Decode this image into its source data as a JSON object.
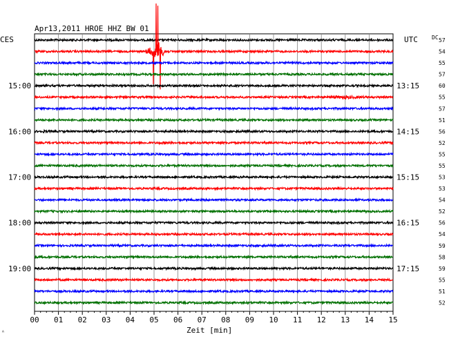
{
  "chart_data": {
    "type": "line",
    "title": "Apr13,2011   HROE HHZ BW 01",
    "left_corner_label": "CES",
    "right_corner_label": "UTC",
    "dc_label": "DC",
    "xlabel": "Zeit [min]",
    "xlim": [
      0,
      15
    ],
    "x_ticks": [
      "00",
      "01",
      "02",
      "03",
      "04",
      "05",
      "06",
      "07",
      "08",
      "09",
      "10",
      "11",
      "12",
      "13",
      "14",
      "15"
    ],
    "left_time_labels": [
      {
        "row": 4,
        "text": "15:00"
      },
      {
        "row": 8,
        "text": "16:00"
      },
      {
        "row": 12,
        "text": "17:00"
      },
      {
        "row": 16,
        "text": "18:00"
      },
      {
        "row": 20,
        "text": "19:00"
      }
    ],
    "right_time_labels": [
      {
        "row": 4,
        "text": "13:15"
      },
      {
        "row": 8,
        "text": "14:15"
      },
      {
        "row": 12,
        "text": "15:15"
      },
      {
        "row": 16,
        "text": "16:15"
      },
      {
        "row": 20,
        "text": "17:15"
      }
    ],
    "dc_values": [
      "57",
      "54",
      "55",
      "57",
      "60",
      "55",
      "57",
      "51",
      "56",
      "52",
      "55",
      "55",
      "53",
      "53",
      "54",
      "52",
      "56",
      "54",
      "59",
      "58",
      "59",
      "55",
      "51",
      "52"
    ],
    "trace_colors": [
      "#000000",
      "#ff0000",
      "#0000ff",
      "#007000"
    ],
    "events": [
      {
        "row": 1,
        "center_min": 5.1,
        "width_min": 0.5,
        "amplitude": 8.0
      },
      {
        "row": 5,
        "center_min": 13.0,
        "width_min": 0.9,
        "amplitude": 1.8
      },
      {
        "row": 8,
        "center_min": 0.4,
        "width_min": 0.5,
        "amplitude": 1.3
      },
      {
        "row": 8,
        "center_min": 8.8,
        "width_min": 0.4,
        "amplitude": 1.3
      },
      {
        "row": 9,
        "center_min": 5.4,
        "width_min": 0.4,
        "amplitude": 1.2
      },
      {
        "row": 18,
        "center_min": 9.6,
        "width_min": 0.4,
        "amplitude": 1.2
      },
      {
        "row": 17,
        "center_min": 13.1,
        "width_min": 0.2,
        "amplitude": 1.1
      }
    ]
  }
}
